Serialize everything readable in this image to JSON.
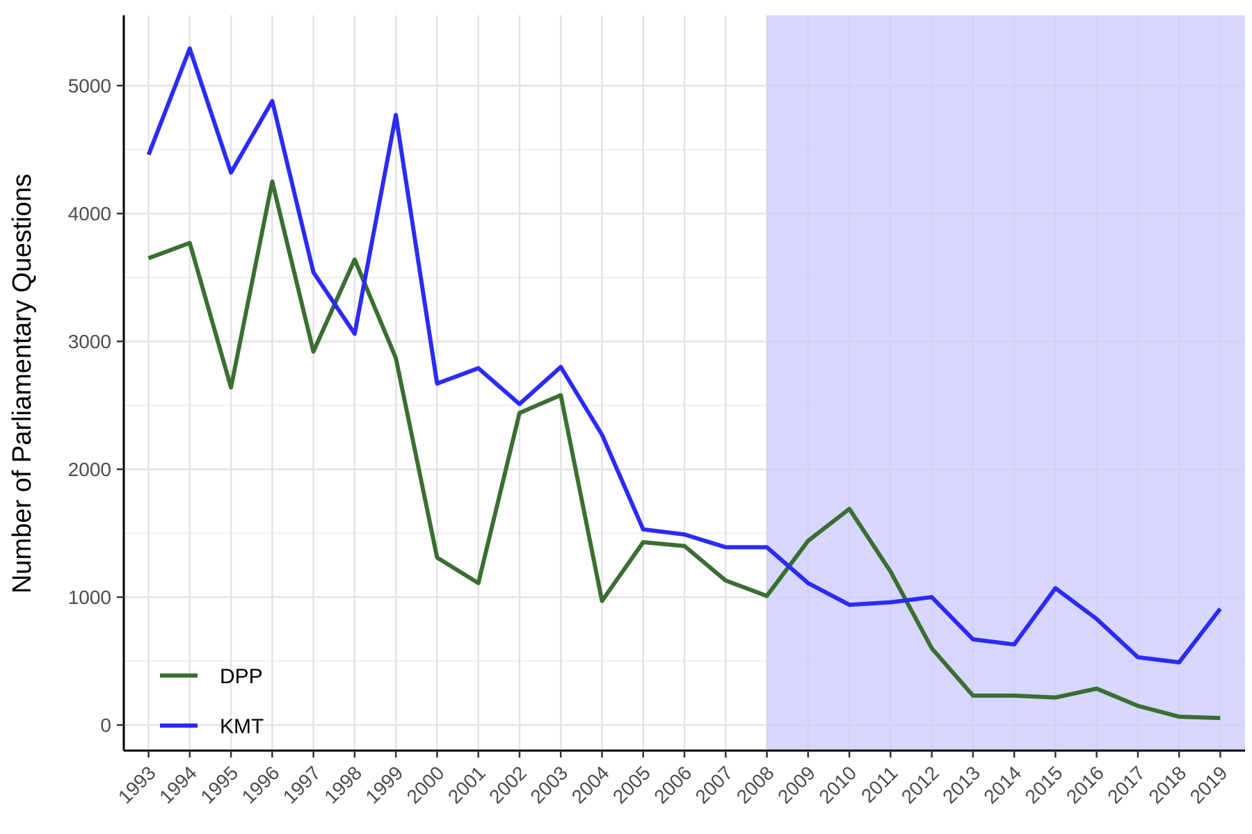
{
  "chart_data": {
    "type": "line",
    "title": "",
    "xlabel": "",
    "ylabel": "Number of Parliamentary Questions",
    "x": [
      1993,
      1994,
      1995,
      1996,
      1997,
      1998,
      1999,
      2000,
      2001,
      2002,
      2003,
      2004,
      2005,
      2006,
      2007,
      2008,
      2009,
      2010,
      2011,
      2012,
      2013,
      2014,
      2015,
      2016,
      2017,
      2018,
      2019
    ],
    "xlim": [
      1992.4,
      2019.6
    ],
    "ylim": [
      -200,
      5550
    ],
    "yticks": [
      0,
      1000,
      2000,
      3000,
      4000,
      5000
    ],
    "grid": true,
    "legend_position": "bottom-left",
    "shaded_region": {
      "x_start": 2008,
      "x_end": 2019.6,
      "color": "#ccccff"
    },
    "series": [
      {
        "name": "DPP",
        "color": "#3b6e32",
        "values": [
          3650,
          3770,
          2640,
          4250,
          2920,
          3640,
          2870,
          1310,
          1110,
          2440,
          2580,
          970,
          1430,
          1400,
          1130,
          1010,
          1440,
          1690,
          1200,
          600,
          230,
          230,
          215,
          285,
          150,
          65,
          55
        ]
      },
      {
        "name": "KMT",
        "color": "#2b2bf5",
        "values": [
          4460,
          5290,
          4320,
          4880,
          3540,
          3060,
          4770,
          2670,
          2790,
          2510,
          2800,
          2270,
          1530,
          1490,
          1390,
          1390,
          1110,
          940,
          960,
          1000,
          670,
          630,
          1070,
          830,
          530,
          490,
          910
        ]
      }
    ]
  }
}
